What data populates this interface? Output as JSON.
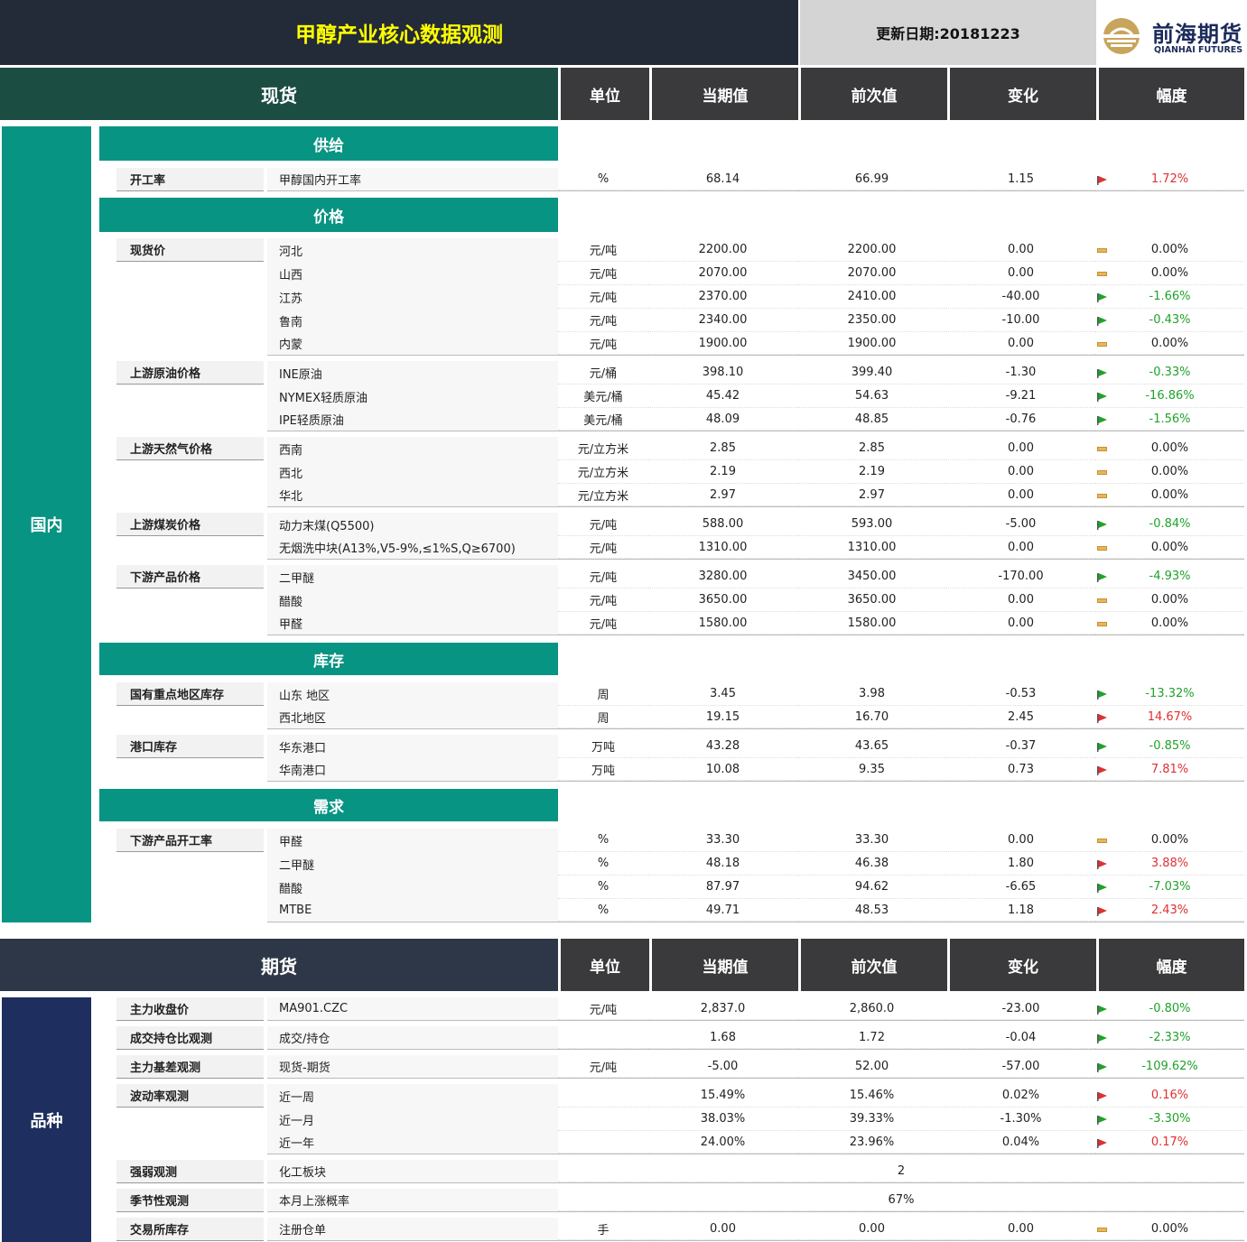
{
  "header": {
    "title": "甲醇产业核心数据观测",
    "update_date": "更新日期:20181223",
    "logo_cn": "前海期货",
    "logo_en": "QIANHAI FUTURES"
  },
  "columns": {
    "unit": "单位",
    "current": "当期值",
    "previous": "前次值",
    "change": "变化",
    "range": "幅度"
  },
  "colors": {
    "up": "#e03030",
    "down": "#1fa22a",
    "flat": "#e8b55c",
    "band": "#079482",
    "navy": "#1e2f5f"
  },
  "spot": {
    "section_title": "现货",
    "side_label": "国内",
    "bands": {
      "supply": "供给",
      "price": "价格",
      "inventory": "库存",
      "demand": "需求"
    },
    "categories": {
      "operating_rate": "开工率",
      "spot_price": "现货价",
      "crude": "上游原油价格",
      "gas": "上游天然气价格",
      "coal": "上游煤炭价格",
      "downstream_price": "下游产品价格",
      "key_region_inventory": "国有重点地区库存",
      "port_inventory": "港口库存",
      "downstream_rate": "下游产品开工率"
    },
    "rows": [
      {
        "name": "甲醇国内开工率",
        "unit": "%",
        "current": "68.14",
        "previous": "66.99",
        "change": "1.15",
        "range": "1.72%",
        "dir": "up"
      },
      {
        "name": "河北",
        "unit": "元/吨",
        "current": "2200.00",
        "previous": "2200.00",
        "change": "0.00",
        "range": "0.00%",
        "dir": "flat"
      },
      {
        "name": "山西",
        "unit": "元/吨",
        "current": "2070.00",
        "previous": "2070.00",
        "change": "0.00",
        "range": "0.00%",
        "dir": "flat"
      },
      {
        "name": "江苏",
        "unit": "元/吨",
        "current": "2370.00",
        "previous": "2410.00",
        "change": "-40.00",
        "range": "-1.66%",
        "dir": "down"
      },
      {
        "name": "鲁南",
        "unit": "元/吨",
        "current": "2340.00",
        "previous": "2350.00",
        "change": "-10.00",
        "range": "-0.43%",
        "dir": "down"
      },
      {
        "name": "内蒙",
        "unit": "元/吨",
        "current": "1900.00",
        "previous": "1900.00",
        "change": "0.00",
        "range": "0.00%",
        "dir": "flat"
      },
      {
        "name": "INE原油",
        "unit": "元/桶",
        "current": "398.10",
        "previous": "399.40",
        "change": "-1.30",
        "range": "-0.33%",
        "dir": "down"
      },
      {
        "name": "NYMEX轻质原油",
        "unit": "美元/桶",
        "current": "45.42",
        "previous": "54.63",
        "change": "-9.21",
        "range": "-16.86%",
        "dir": "down"
      },
      {
        "name": "IPE轻质原油",
        "unit": "美元/桶",
        "current": "48.09",
        "previous": "48.85",
        "change": "-0.76",
        "range": "-1.56%",
        "dir": "down"
      },
      {
        "name": "西南",
        "unit": "元/立方米",
        "current": "2.85",
        "previous": "2.85",
        "change": "0.00",
        "range": "0.00%",
        "dir": "flat"
      },
      {
        "name": "西北",
        "unit": "元/立方米",
        "current": "2.19",
        "previous": "2.19",
        "change": "0.00",
        "range": "0.00%",
        "dir": "flat"
      },
      {
        "name": "华北",
        "unit": "元/立方米",
        "current": "2.97",
        "previous": "2.97",
        "change": "0.00",
        "range": "0.00%",
        "dir": "flat"
      },
      {
        "name": "动力末煤(Q5500)",
        "unit": "元/吨",
        "current": "588.00",
        "previous": "593.00",
        "change": "-5.00",
        "range": "-0.84%",
        "dir": "down"
      },
      {
        "name": "无烟洗中块(A13%,V5-9%,≤1%S,Q≥6700)",
        "unit": "元/吨",
        "current": "1310.00",
        "previous": "1310.00",
        "change": "0.00",
        "range": "0.00%",
        "dir": "flat"
      },
      {
        "name": "二甲醚",
        "unit": "元/吨",
        "current": "3280.00",
        "previous": "3450.00",
        "change": "-170.00",
        "range": "-4.93%",
        "dir": "down"
      },
      {
        "name": "醋酸",
        "unit": "元/吨",
        "current": "3650.00",
        "previous": "3650.00",
        "change": "0.00",
        "range": "0.00%",
        "dir": "flat"
      },
      {
        "name": "甲醛",
        "unit": "元/吨",
        "current": "1580.00",
        "previous": "1580.00",
        "change": "0.00",
        "range": "0.00%",
        "dir": "flat"
      },
      {
        "name": "山东 地区",
        "unit": "周",
        "current": "3.45",
        "previous": "3.98",
        "change": "-0.53",
        "range": "-13.32%",
        "dir": "down"
      },
      {
        "name": "西北地区",
        "unit": "周",
        "current": "19.15",
        "previous": "16.70",
        "change": "2.45",
        "range": "14.67%",
        "dir": "up"
      },
      {
        "name": "华东港口",
        "unit": "万吨",
        "current": "43.28",
        "previous": "43.65",
        "change": "-0.37",
        "range": "-0.85%",
        "dir": "down"
      },
      {
        "name": "华南港口",
        "unit": "万吨",
        "current": "10.08",
        "previous": "9.35",
        "change": "0.73",
        "range": "7.81%",
        "dir": "up"
      },
      {
        "name": "甲醛",
        "unit": "%",
        "current": "33.30",
        "previous": "33.30",
        "change": "0.00",
        "range": "0.00%",
        "dir": "flat"
      },
      {
        "name": "二甲醚",
        "unit": "%",
        "current": "48.18",
        "previous": "46.38",
        "change": "1.80",
        "range": "3.88%",
        "dir": "up"
      },
      {
        "name": "醋酸",
        "unit": "%",
        "current": "87.97",
        "previous": "94.62",
        "change": "-6.65",
        "range": "-7.03%",
        "dir": "down"
      },
      {
        "name": "MTBE",
        "unit": "%",
        "current": "49.71",
        "previous": "48.53",
        "change": "1.18",
        "range": "2.43%",
        "dir": "up"
      }
    ]
  },
  "futures": {
    "section_title": "期货",
    "side_label": "品种",
    "categories": {
      "main_close": "主力收盘价",
      "vol_oi": "成交持仓比观测",
      "basis": "主力基差观测",
      "volatility": "波动率观测",
      "strength": "强弱观测",
      "seasonality": "季节性观测",
      "exchange_inventory": "交易所库存"
    },
    "rows": [
      {
        "name": "MA901.CZC",
        "unit": "元/吨",
        "current": "2,837.0",
        "previous": "2,860.0",
        "change": "-23.00",
        "range": "-0.80%",
        "dir": "down"
      },
      {
        "name": "成交/持仓",
        "unit": "",
        "current": "1.68",
        "previous": "1.72",
        "change": "-0.04",
        "range": "-2.33%",
        "dir": "down"
      },
      {
        "name": "现货-期货",
        "unit": "元/吨",
        "current": "-5.00",
        "previous": "52.00",
        "change": "-57.00",
        "range": "-109.62%",
        "dir": "down"
      },
      {
        "name": "近一周",
        "unit": "",
        "current": "15.49%",
        "previous": "15.46%",
        "change": "0.02%",
        "range": "0.16%",
        "dir": "up"
      },
      {
        "name": "近一月",
        "unit": "",
        "current": "38.03%",
        "previous": "39.33%",
        "change": "-1.30%",
        "range": "-3.30%",
        "dir": "down"
      },
      {
        "name": "近一年",
        "unit": "",
        "current": "24.00%",
        "previous": "23.96%",
        "change": "0.04%",
        "range": "0.17%",
        "dir": "up"
      },
      {
        "name": "化工板块",
        "span_value": "2"
      },
      {
        "name": "本月上涨概率",
        "span_value": "67%"
      },
      {
        "name": "注册仓单",
        "unit": "手",
        "current": "0.00",
        "previous": "0.00",
        "change": "0.00",
        "range": "0.00%",
        "dir": "flat"
      }
    ]
  }
}
